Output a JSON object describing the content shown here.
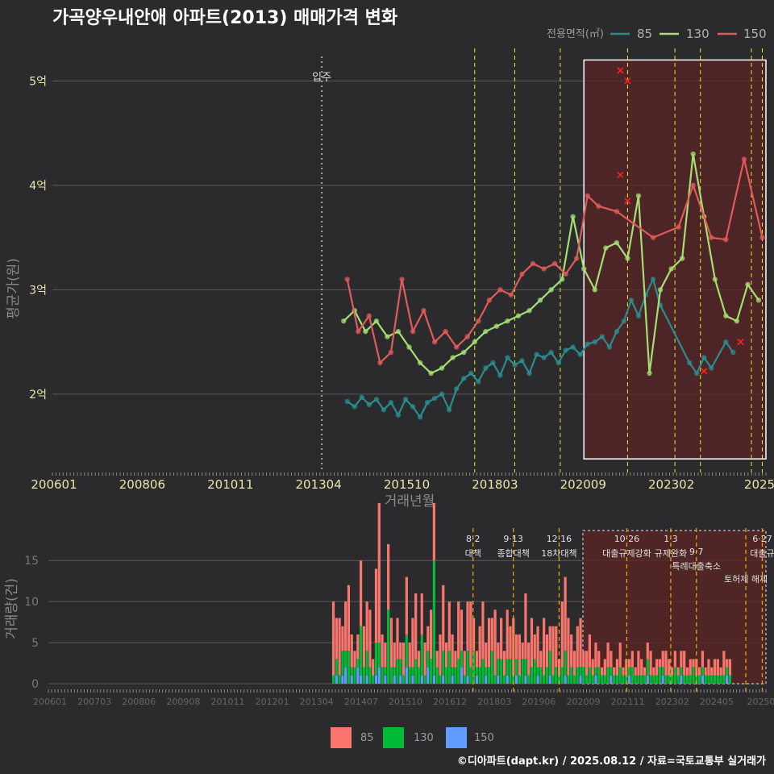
{
  "title": "가곡양우내안애 아파트(2013) 매매가격 변화",
  "footer": "©디아파트(dapt.kr) / 2025.08.12 / 자료=국토교통부 실거래가",
  "colors": {
    "bg": "#2b2b2d",
    "grid": "#5a5a5c",
    "teal": "#2a8c8f",
    "lgreen": "#a5de73",
    "red": "#e05a5a",
    "bar85": "#f8766d",
    "bar130": "#00ba38",
    "bar150": "#619cff",
    "yellow": "#e8e82a",
    "orange": "#e8a200",
    "highlight": "#5a2424"
  },
  "chart_data": [
    {
      "type": "line",
      "title": "가곡양우내안애 아파트(2013) 매매가격 변화",
      "xlabel": "거래년월",
      "ylabel": "평균가(원)",
      "x_ticks": [
        "200601",
        "200806",
        "201011",
        "201304",
        "201510",
        "201803",
        "202009",
        "202302",
        "2025"
      ],
      "y_ticks": [
        "2억",
        "3억",
        "4억",
        "5억"
      ],
      "ylim_eok": [
        1.25,
        5.35
      ],
      "legend_title": "전용면적(㎡)",
      "legend": [
        "85",
        "130",
        "150"
      ],
      "event_label": "입주",
      "event_year": 2013.4,
      "policy_lines_year": [
        2017.6,
        2018.7,
        2019.95,
        2021.8,
        2023.1,
        2023.8,
        2025.2,
        2025.5
      ],
      "highlight_years": [
        2020.6,
        2025.6
      ],
      "highlight_eok": [
        1.38,
        5.2
      ],
      "series": [
        {
          "name": "85",
          "x": [
            2014.1,
            2014.3,
            2014.5,
            2014.7,
            2014.9,
            2015.1,
            2015.3,
            2015.5,
            2015.7,
            2015.9,
            2016.1,
            2016.3,
            2016.5,
            2016.7,
            2016.9,
            2017.1,
            2017.3,
            2017.5,
            2017.7,
            2017.9,
            2018.1,
            2018.3,
            2018.5,
            2018.7,
            2018.9,
            2019.1,
            2019.3,
            2019.5,
            2019.7,
            2019.9,
            2020.1,
            2020.3,
            2020.5,
            2020.7,
            2020.9,
            2021.1,
            2021.3,
            2021.5,
            2021.7,
            2021.9,
            2022.1,
            2022.3,
            2022.5,
            2022.7,
            2023.5,
            2023.7,
            2023.9,
            2024.1,
            2024.5,
            2024.7
          ],
          "y": [
            1.93,
            1.88,
            1.97,
            1.9,
            1.95,
            1.85,
            1.92,
            1.8,
            1.95,
            1.88,
            1.78,
            1.92,
            1.96,
            2.0,
            1.85,
            2.05,
            2.15,
            2.2,
            2.12,
            2.25,
            2.3,
            2.18,
            2.35,
            2.28,
            2.32,
            2.2,
            2.38,
            2.35,
            2.4,
            2.3,
            2.42,
            2.45,
            2.38,
            2.48,
            2.5,
            2.55,
            2.45,
            2.6,
            2.7,
            2.9,
            2.75,
            2.95,
            3.1,
            2.85,
            2.3,
            2.2,
            2.35,
            2.25,
            2.5,
            2.4
          ]
        },
        {
          "name": "130",
          "x": [
            2014.0,
            2014.3,
            2014.6,
            2014.9,
            2015.2,
            2015.5,
            2015.8,
            2016.1,
            2016.4,
            2016.7,
            2017.0,
            2017.3,
            2017.6,
            2017.9,
            2018.2,
            2018.5,
            2018.8,
            2019.1,
            2019.4,
            2019.7,
            2020.0,
            2020.3,
            2020.6,
            2020.9,
            2021.2,
            2021.5,
            2021.8,
            2022.1,
            2022.4,
            2022.7,
            2023.0,
            2023.3,
            2023.6,
            2023.9,
            2024.2,
            2024.5,
            2024.8,
            2025.1,
            2025.4
          ],
          "y": [
            2.7,
            2.8,
            2.6,
            2.7,
            2.55,
            2.6,
            2.45,
            2.3,
            2.2,
            2.25,
            2.35,
            2.4,
            2.5,
            2.6,
            2.65,
            2.7,
            2.75,
            2.8,
            2.9,
            3.0,
            3.1,
            3.7,
            3.2,
            3.0,
            3.4,
            3.45,
            3.3,
            3.9,
            2.2,
            3.0,
            3.2,
            3.3,
            4.3,
            3.7,
            3.1,
            2.75,
            2.7,
            3.05,
            2.9
          ]
        },
        {
          "name": "150",
          "x": [
            2014.1,
            2014.4,
            2014.7,
            2015.0,
            2015.3,
            2015.6,
            2015.9,
            2016.2,
            2016.5,
            2016.8,
            2017.1,
            2017.4,
            2017.7,
            2018.0,
            2018.3,
            2018.6,
            2018.9,
            2019.2,
            2019.5,
            2019.8,
            2020.1,
            2020.4,
            2020.7,
            2021.0,
            2021.5,
            2022.5,
            2023.2,
            2023.6,
            2024.1,
            2024.5,
            2025.0,
            2025.5
          ],
          "y": [
            3.1,
            2.6,
            2.75,
            2.3,
            2.4,
            3.1,
            2.6,
            2.8,
            2.5,
            2.6,
            2.45,
            2.55,
            2.7,
            2.9,
            3.0,
            2.95,
            3.15,
            3.25,
            3.2,
            3.25,
            3.15,
            3.3,
            3.9,
            3.8,
            3.75,
            3.5,
            3.6,
            4.0,
            3.5,
            3.48,
            4.25,
            3.5
          ]
        }
      ],
      "x_marks_150": {
        "x": [
          2021.6,
          2021.8,
          2021.6,
          2021.8,
          2023.9,
          2024.9
        ],
        "y": [
          5.1,
          5.0,
          4.1,
          3.85,
          2.22,
          2.5
        ]
      }
    },
    {
      "type": "bar",
      "ylabel": "거래량(건)",
      "y_ticks": [
        "0",
        "5",
        "10",
        "15"
      ],
      "ylim": [
        0,
        18
      ],
      "x_ticks": [
        "200601",
        "200703",
        "200806",
        "200908",
        "201011",
        "201201",
        "201304",
        "201407",
        "201510",
        "201612",
        "201803",
        "201906",
        "202009",
        "202111",
        "202302",
        "202405",
        "20250"
      ],
      "legend": [
        "85",
        "130",
        "150"
      ],
      "policy_labels": [
        {
          "date": "8·2",
          "text": "대책",
          "year": 2017.6
        },
        {
          "date": "9·13",
          "text": "종합대책",
          "year": 2018.7
        },
        {
          "date": "12·16",
          "text": "18차대책",
          "year": 2019.95
        },
        {
          "date": "10·26",
          "text": "대출규제강화",
          "year": 2021.8
        },
        {
          "date": "1·3",
          "text": "규제완화",
          "year": 2023.0
        },
        {
          "date": "9·7",
          "text": "특례대출축소",
          "year": 2023.7
        },
        {
          "date": "",
          "text": "토허제 해제",
          "year": 2025.05
        },
        {
          "date": "6·27",
          "text": "대출규",
          "year": 2025.5
        }
      ],
      "months_from": 2013.75,
      "bars_85": [
        9,
        5,
        7,
        3,
        6,
        8,
        4,
        2,
        3,
        8,
        5,
        6,
        7,
        2,
        9,
        17,
        4,
        3,
        8,
        6,
        3,
        5,
        2,
        4,
        7,
        3,
        6,
        8,
        2,
        5,
        4,
        3,
        6,
        7,
        2,
        5,
        8,
        3,
        6,
        4,
        2,
        7,
        5,
        3,
        6,
        8,
        4,
        2,
        5,
        7,
        3,
        6,
        4,
        8,
        2,
        5,
        3,
        6,
        4,
        7,
        3,
        5,
        2,
        8,
        4,
        6,
        3,
        5,
        2,
        7,
        4,
        3,
        6,
        5,
        2,
        8,
        9,
        7,
        4,
        3,
        5,
        6,
        2,
        3,
        4,
        2,
        3,
        2,
        1,
        2,
        3,
        2,
        1,
        2,
        3,
        1,
        2,
        1,
        2,
        1,
        3,
        2,
        1,
        2,
        3,
        1,
        2,
        1,
        2,
        3,
        2,
        1,
        2,
        1,
        2,
        3,
        1,
        2,
        1,
        2,
        1,
        2,
        1,
        2,
        1,
        2,
        2,
        1,
        3,
        1,
        2
      ],
      "bars_130": [
        1,
        2,
        1,
        3,
        2,
        4,
        1,
        2,
        1,
        6,
        2,
        3,
        2,
        1,
        4,
        3,
        2,
        1,
        9,
        2,
        1,
        3,
        2,
        1,
        4,
        2,
        1,
        3,
        2,
        5,
        1,
        2,
        3,
        14,
        2,
        1,
        3,
        2,
        4,
        1,
        2,
        3,
        2,
        1,
        3,
        2,
        4,
        1,
        2,
        3,
        1,
        2,
        4,
        1,
        2,
        3,
        1,
        2,
        3,
        1,
        2,
        1,
        3,
        2,
        1,
        2,
        3,
        1,
        2,
        1,
        2,
        3,
        1,
        2,
        1,
        2,
        3,
        1,
        2,
        1,
        2,
        1,
        2,
        1,
        2,
        1,
        1,
        2,
        1,
        1,
        2,
        1,
        1,
        1,
        2,
        1,
        1,
        1,
        2,
        1,
        1,
        1,
        1,
        2,
        1,
        1,
        1,
        2,
        1,
        1,
        1,
        1,
        2,
        1,
        1,
        1,
        1,
        1,
        2,
        1,
        1,
        1,
        1,
        1,
        1,
        1,
        1,
        1,
        1,
        1,
        1
      ],
      "bars_150": [
        0,
        1,
        0,
        1,
        2,
        0,
        1,
        0,
        2,
        1,
        0,
        1,
        0,
        0,
        1,
        2,
        0,
        1,
        0,
        0,
        1,
        0,
        1,
        0,
        2,
        0,
        1,
        0,
        0,
        1,
        0,
        2,
        0,
        1,
        0,
        0,
        1,
        0,
        0,
        1,
        0,
        0,
        2,
        0,
        1,
        0,
        0,
        1,
        0,
        0,
        1,
        0,
        0,
        0,
        1,
        0,
        0,
        1,
        0,
        0,
        1,
        0,
        0,
        1,
        0,
        0,
        0,
        1,
        0,
        0,
        0,
        1,
        0,
        0,
        0,
        0,
        1,
        0,
        0,
        0,
        0,
        1,
        0,
        0,
        0,
        0,
        1,
        0,
        0,
        0,
        0,
        1,
        0,
        0,
        0,
        0,
        0,
        1,
        0,
        0,
        0,
        0,
        0,
        1,
        0,
        0,
        0,
        0,
        1,
        0,
        0,
        0,
        0,
        0,
        1,
        0,
        0,
        0,
        0,
        0,
        0,
        1,
        0,
        0,
        0,
        0,
        0,
        0,
        0,
        1,
        0,
        0
      ]
    }
  ]
}
